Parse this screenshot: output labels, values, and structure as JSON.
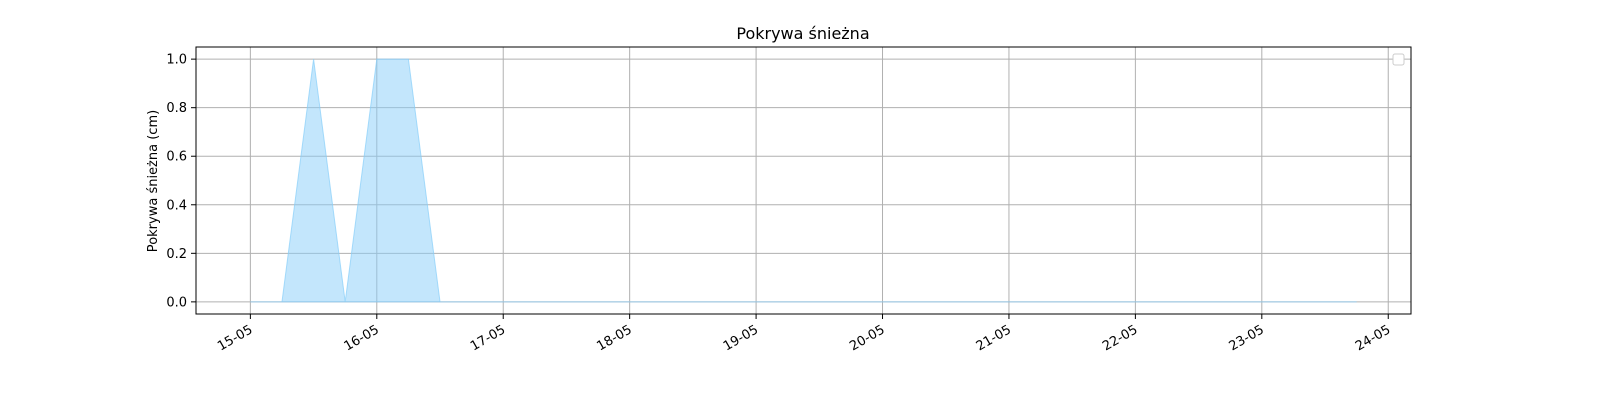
{
  "chart_data": {
    "type": "area",
    "title": "Pokrywa śnieżna",
    "xlabel": "",
    "ylabel": "Pokrywa śnieżna (cm)",
    "x_tick_labels": [
      "15-05",
      "16-05",
      "17-05",
      "18-05",
      "19-05",
      "20-05",
      "21-05",
      "22-05",
      "23-05",
      "24-05"
    ],
    "y_tick_labels": [
      "0.0",
      "0.2",
      "0.4",
      "0.6",
      "0.8",
      "1.0"
    ],
    "y_ticks": [
      0,
      0.2,
      0.4,
      0.6,
      0.8,
      1.0
    ],
    "xlim_days": [
      -0.43,
      9.18
    ],
    "ylim": [
      -0.05,
      1.05
    ],
    "grid": true,
    "legend": "top-right",
    "fill_color": "#87CEFA",
    "series": [
      {
        "x_days": [
          0,
          0.25,
          0.5,
          0.75,
          1.0,
          1.25,
          1.5,
          1.75,
          2.0,
          2.5,
          3.0,
          3.5,
          4.0,
          4.5,
          5.0,
          5.5,
          6.0,
          6.5,
          7.0,
          7.5,
          8.0,
          8.5,
          8.75
        ],
        "values": [
          0,
          0,
          1.0,
          0,
          1.0,
          1.0,
          0,
          0,
          0,
          0,
          0,
          0,
          0,
          0,
          0,
          0,
          0,
          0,
          0,
          0,
          0,
          0,
          0
        ]
      }
    ]
  }
}
